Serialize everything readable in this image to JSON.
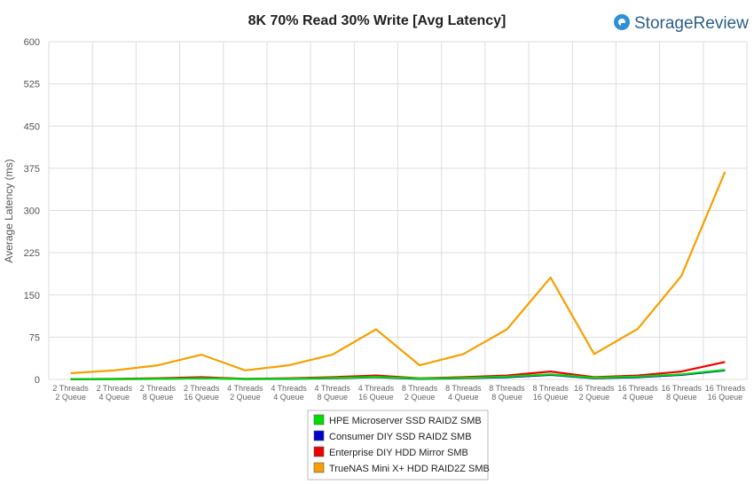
{
  "brand": {
    "name": "StorageReview",
    "color": "#2f8fd8"
  },
  "chart_data": {
    "type": "line",
    "title": "8K 70% Read 30% Write [Avg Latency]",
    "xlabel": "",
    "ylabel": "Average Latency (ms)",
    "ylim": [
      0,
      600
    ],
    "yticks": [
      0,
      75,
      150,
      225,
      300,
      375,
      450,
      525,
      600
    ],
    "grid": true,
    "legend_position": "bottom",
    "categories": [
      [
        "2 Threads",
        "2 Queue"
      ],
      [
        "2 Threads",
        "4 Queue"
      ],
      [
        "2 Threads",
        "8 Queue"
      ],
      [
        "2 Threads",
        "16 Queue"
      ],
      [
        "4 Threads",
        "2 Queue"
      ],
      [
        "4 Threads",
        "4 Queue"
      ],
      [
        "4 Threads",
        "8 Queue"
      ],
      [
        "4 Threads",
        "16 Queue"
      ],
      [
        "8 Threads",
        "2 Queue"
      ],
      [
        "8 Threads",
        "4 Queue"
      ],
      [
        "8 Threads",
        "8 Queue"
      ],
      [
        "8 Threads",
        "16 Queue"
      ],
      [
        "16 Threads",
        "2 Queue"
      ],
      [
        "16 Threads",
        "4 Queue"
      ],
      [
        "16 Threads",
        "8 Queue"
      ],
      [
        "16 Threads",
        "16 Queue"
      ]
    ],
    "series": [
      {
        "name": "HPE Microserver SSD RAIDZ SMB",
        "color": "#00dd00",
        "values": [
          0.4,
          0.6,
          1.0,
          2.0,
          0.8,
          1.2,
          2.5,
          4.5,
          1.5,
          2.5,
          5.0,
          9.0,
          3.0,
          5.0,
          9.0,
          17.0
        ]
      },
      {
        "name": "Consumer DIY SSD RAIDZ SMB",
        "color": "#0000cc",
        "values": [
          0.3,
          0.5,
          1.0,
          2.0,
          0.6,
          1.0,
          2.0,
          4.0,
          1.0,
          2.0,
          4.0,
          8.0,
          2.0,
          4.0,
          8.0,
          16.0
        ]
      },
      {
        "name": "Enterprise DIY HDD Mirror SMB",
        "color": "#ee0000",
        "values": [
          0.5,
          1.0,
          2.0,
          4.0,
          1.0,
          2.0,
          4.0,
          7.0,
          2.0,
          4.0,
          7.0,
          14.0,
          4.0,
          7.0,
          14.0,
          31.0
        ]
      },
      {
        "name": "TrueNAS Mini X+ HDD RAID2Z SMB",
        "color": "#f5a000",
        "values": [
          11,
          16,
          25,
          44,
          16,
          25,
          44,
          89,
          25,
          45,
          89,
          181,
          45,
          90,
          184,
          369
        ]
      }
    ]
  }
}
